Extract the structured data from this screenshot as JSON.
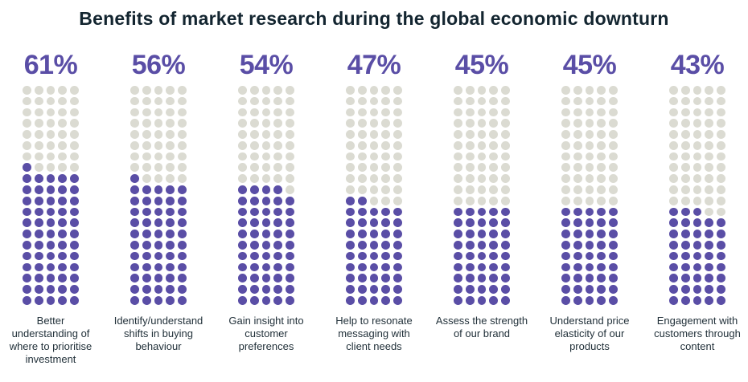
{
  "chart_data": {
    "type": "waffle",
    "title": "Benefits of market research during the global economic downturn",
    "grid": {
      "columns": 5,
      "rows": 20,
      "total_dots_per_category": 100
    },
    "fill_direction": "bottom-up, partial row fills left-to-right",
    "legend": "none",
    "categories": [
      "Better understanding of where to prioritise investment",
      "Identify/understand shifts in buying behaviour",
      "Gain insight into customer preferences",
      "Help to resonate messaging with client needs",
      "Assess the strength of our brand",
      "Understand price elasticity of our products",
      "Engagement with customers through content"
    ],
    "category_label_lines": [
      [
        "Better",
        "understanding of",
        "where to prioritise",
        "investment"
      ],
      [
        "Identify/understand",
        "shifts in buying",
        "behaviour"
      ],
      [
        "Gain insight into",
        "customer",
        "preferences"
      ],
      [
        "Help to resonate",
        "messaging with",
        "client needs"
      ],
      [
        "Assess the strength",
        "of our brand"
      ],
      [
        "Understand price",
        "elasticity of our",
        "products"
      ],
      [
        "Engagement with",
        "customers through",
        "content"
      ]
    ],
    "values": [
      61,
      56,
      54,
      47,
      45,
      45,
      43
    ],
    "value_labels": [
      "61%",
      "56%",
      "54%",
      "47%",
      "45%",
      "45%",
      "43%"
    ]
  },
  "colors": {
    "accent_purple": "#5a4ea6",
    "dot_empty_gray": "#dbdbd2",
    "title_text": "#132530",
    "label_text": "#22313a",
    "background": "#ffffff"
  }
}
